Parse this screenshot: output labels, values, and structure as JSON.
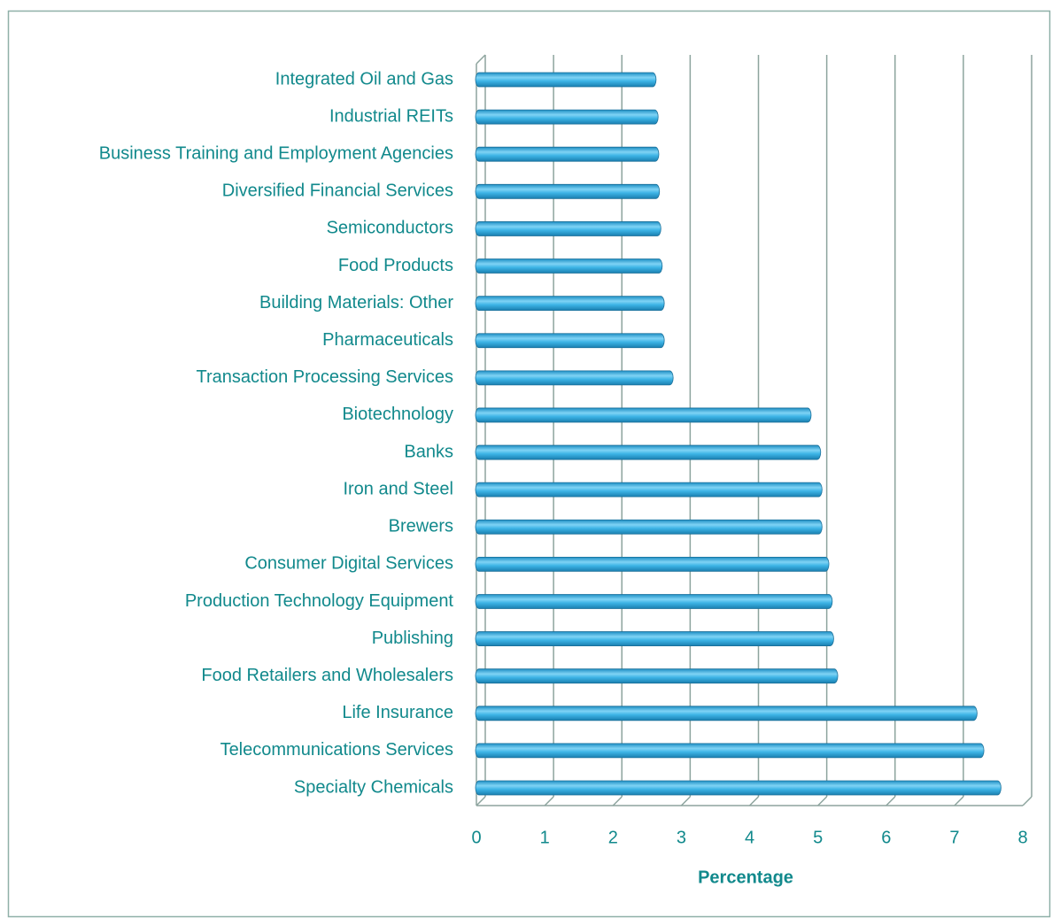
{
  "chart_data": {
    "type": "bar",
    "orientation": "horizontal",
    "x_label": "Percentage",
    "categories": [
      "Integrated Oil and Gas",
      "Industrial REITs",
      "Business Training and Employment Agencies",
      "Diversified Financial Services",
      "Semiconductors",
      "Food Products",
      "Building Materials: Other",
      "Pharmaceuticals",
      "Transaction Processing Services",
      "Biotechnology",
      "Banks",
      "Iron and Steel",
      "Brewers",
      "Consumer Digital Services",
      "Production Technology Equipment",
      "Publishing",
      "Food Retailers and Wholesalers",
      "Life Insurance",
      "Telecommunications Services",
      "Specialty Chemicals"
    ],
    "values": [
      2.54,
      2.57,
      2.58,
      2.59,
      2.61,
      2.63,
      2.66,
      2.66,
      2.79,
      4.81,
      4.95,
      4.97,
      4.97,
      5.07,
      5.12,
      5.14,
      5.2,
      7.24,
      7.34,
      7.59
    ],
    "color": "#3db4e6",
    "xlim": [
      0,
      8
    ],
    "xticks": [
      0,
      1,
      2,
      3,
      4,
      5,
      6,
      7,
      8
    ],
    "grid": true
  }
}
